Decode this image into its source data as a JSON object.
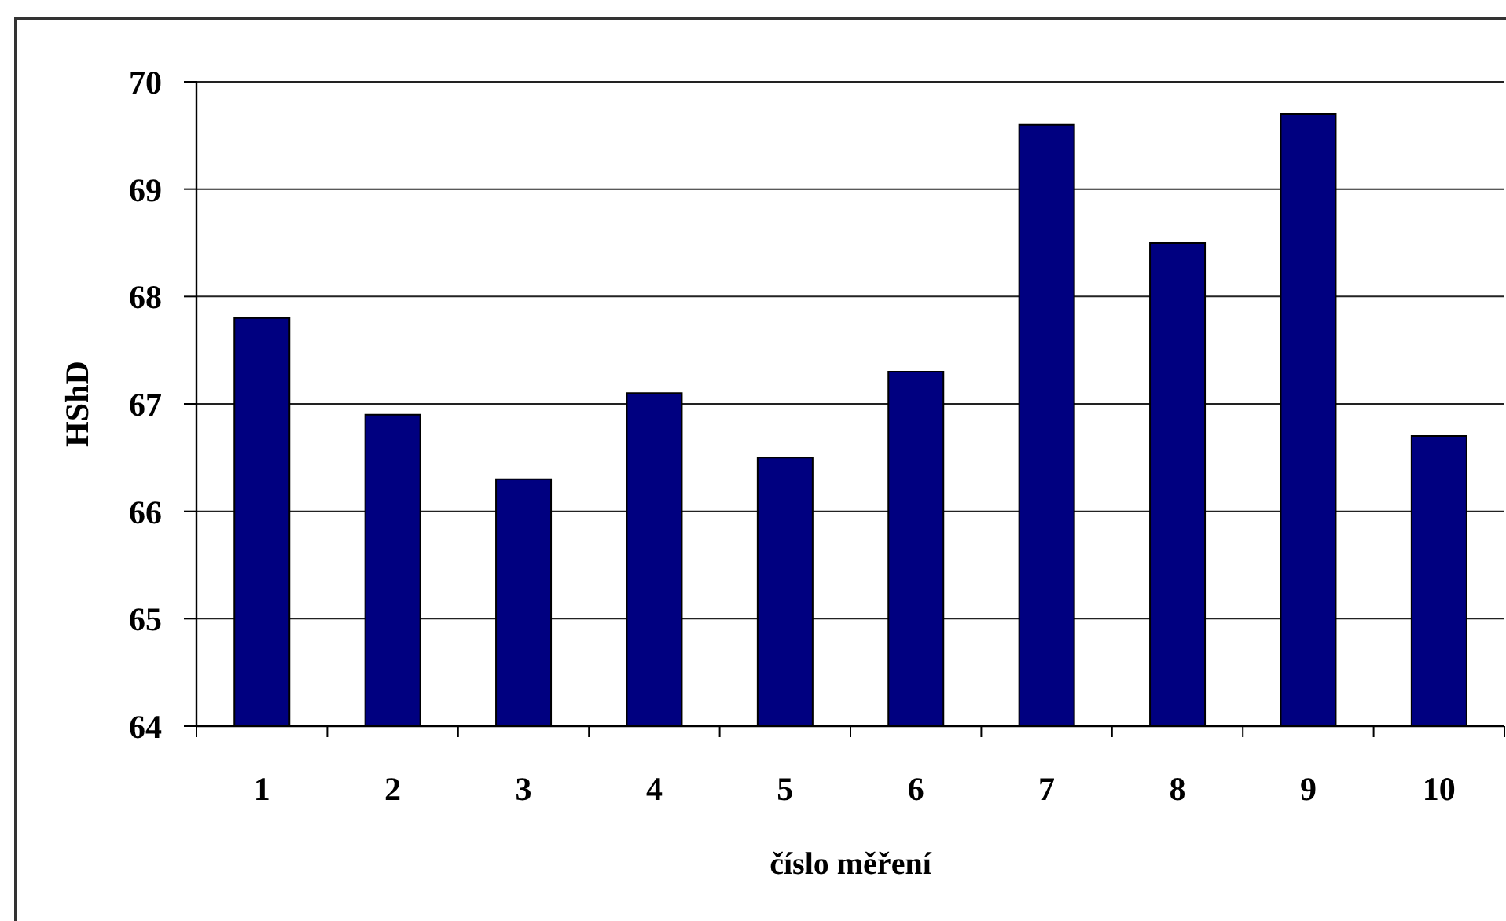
{
  "chart_data": {
    "type": "bar",
    "xlabel": "číslo měření",
    "ylabel": "HShD",
    "categories": [
      "1",
      "2",
      "3",
      "4",
      "5",
      "6",
      "7",
      "8",
      "9",
      "10"
    ],
    "values": [
      67.8,
      66.9,
      66.3,
      67.1,
      66.5,
      67.3,
      69.6,
      68.5,
      69.7,
      66.7
    ],
    "color": "#000080",
    "ylim": [
      64,
      70
    ],
    "yticks": [
      64,
      65,
      66,
      67,
      68,
      69,
      70
    ],
    "grid": "y"
  }
}
